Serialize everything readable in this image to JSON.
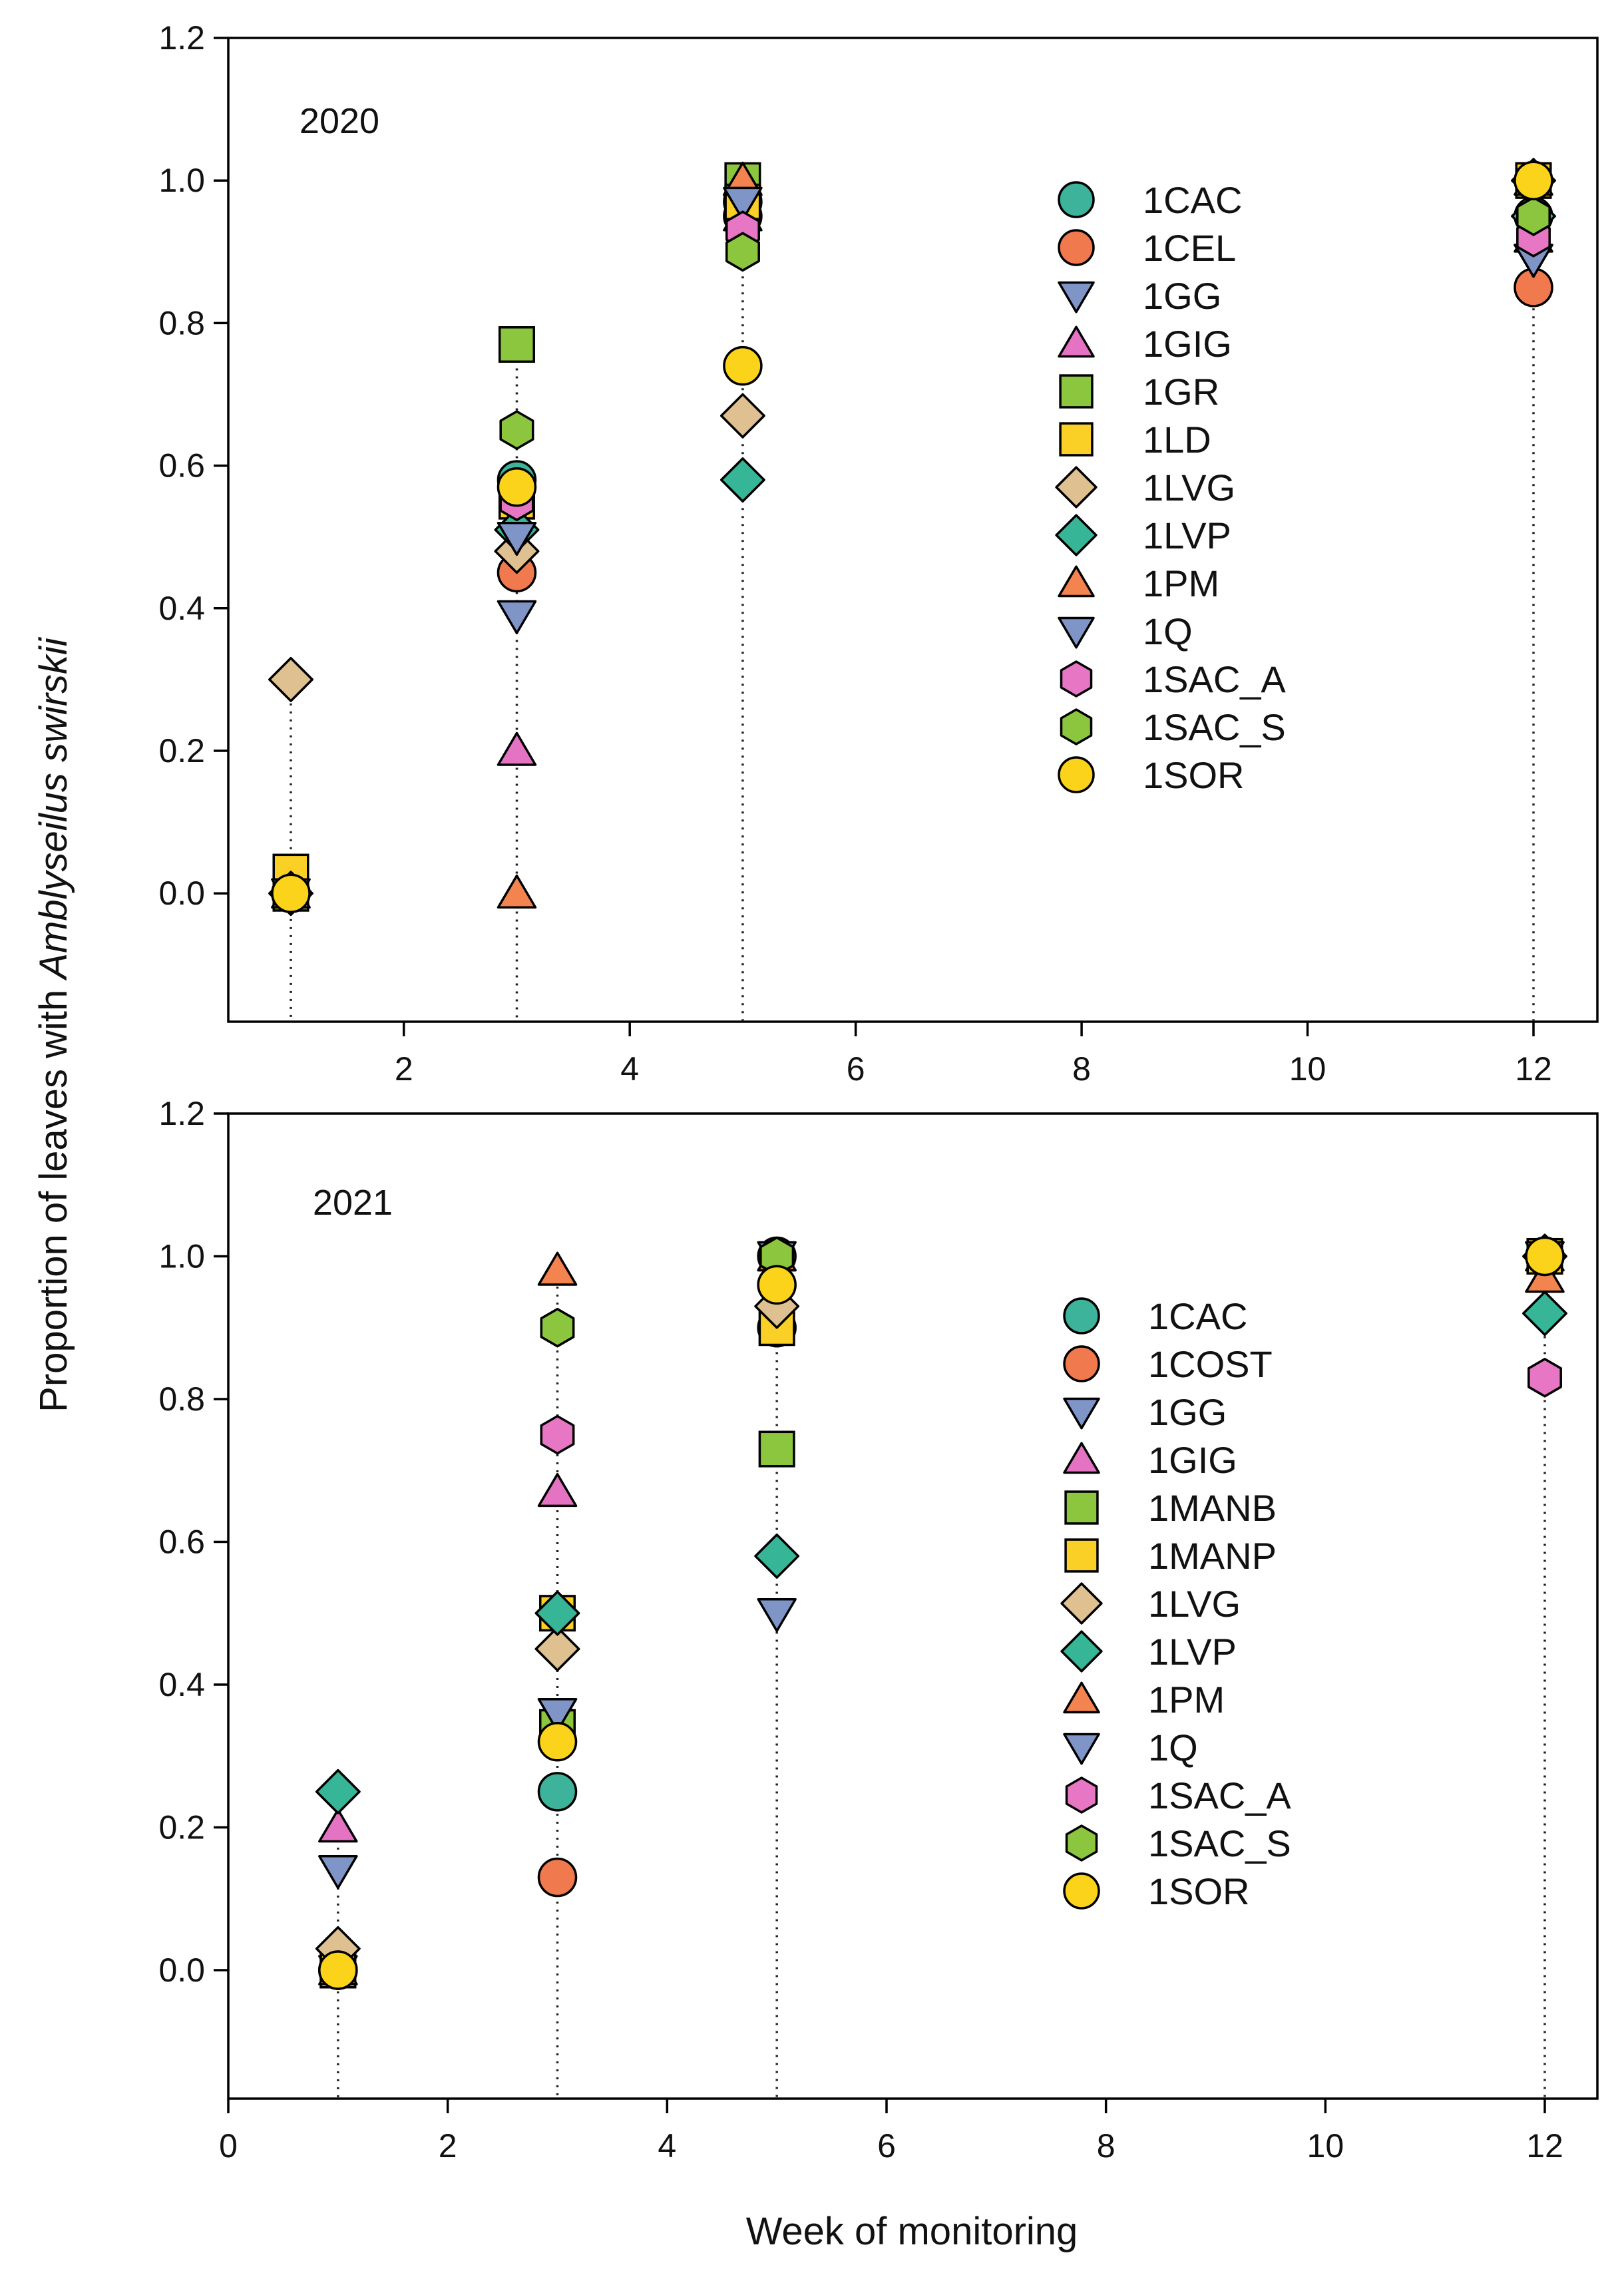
{
  "figure": {
    "ylabel_prefix": "Proportion of leaves with ",
    "ylabel_species": "Amblyseilus swirskii",
    "xlabel": "Week of monitoring"
  },
  "chart_data": [
    {
      "type": "scatter",
      "panel": "top",
      "year_label": "2020",
      "xlim": [
        0,
        12.6
      ],
      "ylim": [
        -0.18,
        1.2
      ],
      "xticks": [
        2,
        4,
        6,
        8,
        10,
        12
      ],
      "yticks": [
        0.0,
        0.2,
        0.4,
        0.6,
        0.8,
        1.0,
        1.2
      ],
      "tick_labels_x": [
        "2",
        "4",
        "6",
        "8",
        "10",
        "12"
      ],
      "tick_labels_y": [
        "0.0",
        "0.2",
        "0.4",
        "0.6",
        "0.8",
        "1.0",
        "1.2"
      ],
      "dotted_droplines_at_x": [
        1,
        3,
        5,
        12
      ],
      "legend_position": "upper-right",
      "series": [
        {
          "name": "1CAC",
          "marker": "circle",
          "color": "#3cb39a",
          "points": [
            [
              1,
              0.0
            ],
            [
              3,
              0.58
            ],
            [
              5,
              0.97
            ],
            [
              12,
              0.95
            ]
          ]
        },
        {
          "name": "1CEL",
          "marker": "circle",
          "color": "#f07a4e",
          "points": [
            [
              1,
              0.0
            ],
            [
              3,
              0.45
            ],
            [
              5,
              0.95
            ],
            [
              12,
              0.85
            ]
          ]
        },
        {
          "name": "1GG",
          "marker": "triangle-down",
          "color": "#7f95c8",
          "points": [
            [
              1,
              0.0
            ],
            [
              3,
              0.39
            ],
            [
              5,
              0.96
            ],
            [
              12,
              0.89
            ]
          ]
        },
        {
          "name": "1GIG",
          "marker": "triangle-up",
          "color": "#e474c3",
          "points": [
            [
              1,
              0.0
            ],
            [
              3,
              0.2
            ],
            [
              5,
              0.95
            ],
            [
              12,
              0.92
            ]
          ]
        },
        {
          "name": "1GR",
          "marker": "square",
          "color": "#8cc63f",
          "points": [
            [
              1,
              0.0
            ],
            [
              3,
              0.77
            ],
            [
              5,
              1.0
            ],
            [
              12,
              1.0
            ]
          ]
        },
        {
          "name": "1LD",
          "marker": "square",
          "color": "#fbd026",
          "points": [
            [
              1,
              0.03
            ],
            [
              3,
              0.55
            ],
            [
              5,
              0.97
            ],
            [
              12,
              1.0
            ]
          ]
        },
        {
          "name": "1LVG",
          "marker": "diamond",
          "color": "#dfc090",
          "points": [
            [
              1,
              0.3
            ],
            [
              3,
              0.48
            ],
            [
              5,
              0.67
            ],
            [
              12,
              1.0
            ]
          ]
        },
        {
          "name": "1LVP",
          "marker": "diamond",
          "color": "#37b597",
          "points": [
            [
              1,
              0.0
            ],
            [
              3,
              0.51
            ],
            [
              5,
              0.58
            ],
            [
              12,
              0.95
            ]
          ]
        },
        {
          "name": "1PM",
          "marker": "triangle-up",
          "color": "#f4844f",
          "points": [
            [
              1,
              0.0
            ],
            [
              3,
              0.0
            ],
            [
              5,
              1.0
            ],
            [
              12,
              1.0
            ]
          ]
        },
        {
          "name": "1Q",
          "marker": "triangle-down",
          "color": "#7f95c8",
          "points": [
            [
              1,
              0.0
            ],
            [
              3,
              0.5
            ],
            [
              5,
              0.97
            ],
            [
              12,
              0.89
            ]
          ]
        },
        {
          "name": "1SAC_A",
          "marker": "hexagon",
          "color": "#e777c4",
          "points": [
            [
              1,
              0.0
            ],
            [
              3,
              0.55
            ],
            [
              5,
              0.93
            ],
            [
              12,
              0.92
            ]
          ]
        },
        {
          "name": "1SAC_S",
          "marker": "hexagon",
          "color": "#8cc63f",
          "points": [
            [
              1,
              0.0
            ],
            [
              3,
              0.65
            ],
            [
              5,
              0.9
            ],
            [
              12,
              0.95
            ]
          ]
        },
        {
          "name": "1SOR",
          "marker": "circle",
          "color": "#fbd31a",
          "points": [
            [
              1,
              0.0
            ],
            [
              3,
              0.57
            ],
            [
              5,
              0.74
            ],
            [
              12,
              1.0
            ]
          ]
        }
      ]
    },
    {
      "type": "scatter",
      "panel": "bottom",
      "year_label": "2021",
      "xlim": [
        0,
        12.5
      ],
      "ylim": [
        -0.18,
        1.2
      ],
      "xticks": [
        0,
        2,
        4,
        6,
        8,
        10,
        12
      ],
      "yticks": [
        0.0,
        0.2,
        0.4,
        0.6,
        0.8,
        1.0,
        1.2
      ],
      "tick_labels_x": [
        "0",
        "2",
        "4",
        "6",
        "8",
        "10",
        "12"
      ],
      "tick_labels_y": [
        "0.0",
        "0.2",
        "0.4",
        "0.6",
        "0.8",
        "1.0",
        "1.2"
      ],
      "dotted_droplines_at_x": [
        1,
        3,
        5,
        12
      ],
      "legend_position": "upper-right",
      "series": [
        {
          "name": "1CAC",
          "marker": "circle",
          "color": "#3cb39a",
          "points": [
            [
              1,
              0.0
            ],
            [
              3,
              0.25
            ],
            [
              5,
              0.9
            ],
            [
              12,
              1.0
            ]
          ]
        },
        {
          "name": "1COST",
          "marker": "circle",
          "color": "#f07a4e",
          "points": [
            [
              1,
              0.0
            ],
            [
              3,
              0.13
            ],
            [
              5,
              1.0
            ],
            [
              12,
              1.0
            ]
          ]
        },
        {
          "name": "1GG",
          "marker": "triangle-down",
          "color": "#7f95c8",
          "points": [
            [
              1,
              0.0
            ],
            [
              3,
              0.36
            ],
            [
              5,
              0.5
            ],
            [
              12,
              1.0
            ]
          ]
        },
        {
          "name": "1GIG",
          "marker": "triangle-up",
          "color": "#e474c3",
          "points": [
            [
              1,
              0.2
            ],
            [
              3,
              0.67
            ],
            [
              5,
              1.0
            ],
            [
              12,
              1.0
            ]
          ]
        },
        {
          "name": "1MANB",
          "marker": "square",
          "color": "#8cc63f",
          "points": [
            [
              1,
              0.0
            ],
            [
              3,
              0.34
            ],
            [
              5,
              0.73
            ],
            [
              12,
              1.0
            ]
          ]
        },
        {
          "name": "1MANP",
          "marker": "square",
          "color": "#fbd026",
          "points": [
            [
              1,
              0.0
            ],
            [
              3,
              0.5
            ],
            [
              5,
              0.9
            ],
            [
              12,
              1.0
            ]
          ]
        },
        {
          "name": "1LVG",
          "marker": "diamond",
          "color": "#dfc090",
          "points": [
            [
              1,
              0.03
            ],
            [
              3,
              0.45
            ],
            [
              5,
              0.93
            ],
            [
              12,
              1.0
            ]
          ]
        },
        {
          "name": "1LVP",
          "marker": "diamond",
          "color": "#37b597",
          "points": [
            [
              1,
              0.25
            ],
            [
              3,
              0.5
            ],
            [
              5,
              0.58
            ],
            [
              12,
              0.92
            ]
          ]
        },
        {
          "name": "1PM",
          "marker": "triangle-up",
          "color": "#f4844f",
          "points": [
            [
              1,
              0.0
            ],
            [
              3,
              0.98
            ],
            [
              5,
              1.0
            ],
            [
              12,
              0.97
            ]
          ]
        },
        {
          "name": "1Q",
          "marker": "triangle-down",
          "color": "#7f95c8",
          "points": [
            [
              1,
              0.14
            ],
            [
              3,
              0.36
            ],
            [
              5,
              1.0
            ],
            [
              12,
              1.0
            ]
          ]
        },
        {
          "name": "1SAC_A",
          "marker": "hexagon",
          "color": "#e777c4",
          "points": [
            [
              1,
              0.0
            ],
            [
              3,
              0.75
            ],
            [
              5,
              1.0
            ],
            [
              12,
              0.83
            ]
          ]
        },
        {
          "name": "1SAC_S",
          "marker": "hexagon",
          "color": "#8cc63f",
          "points": [
            [
              1,
              0.0
            ],
            [
              3,
              0.9
            ],
            [
              5,
              1.0
            ],
            [
              12,
              1.0
            ]
          ]
        },
        {
          "name": "1SOR",
          "marker": "circle",
          "color": "#fbd31a",
          "points": [
            [
              1,
              0.0
            ],
            [
              3,
              0.32
            ],
            [
              5,
              0.96
            ],
            [
              12,
              1.0
            ]
          ]
        }
      ]
    }
  ]
}
